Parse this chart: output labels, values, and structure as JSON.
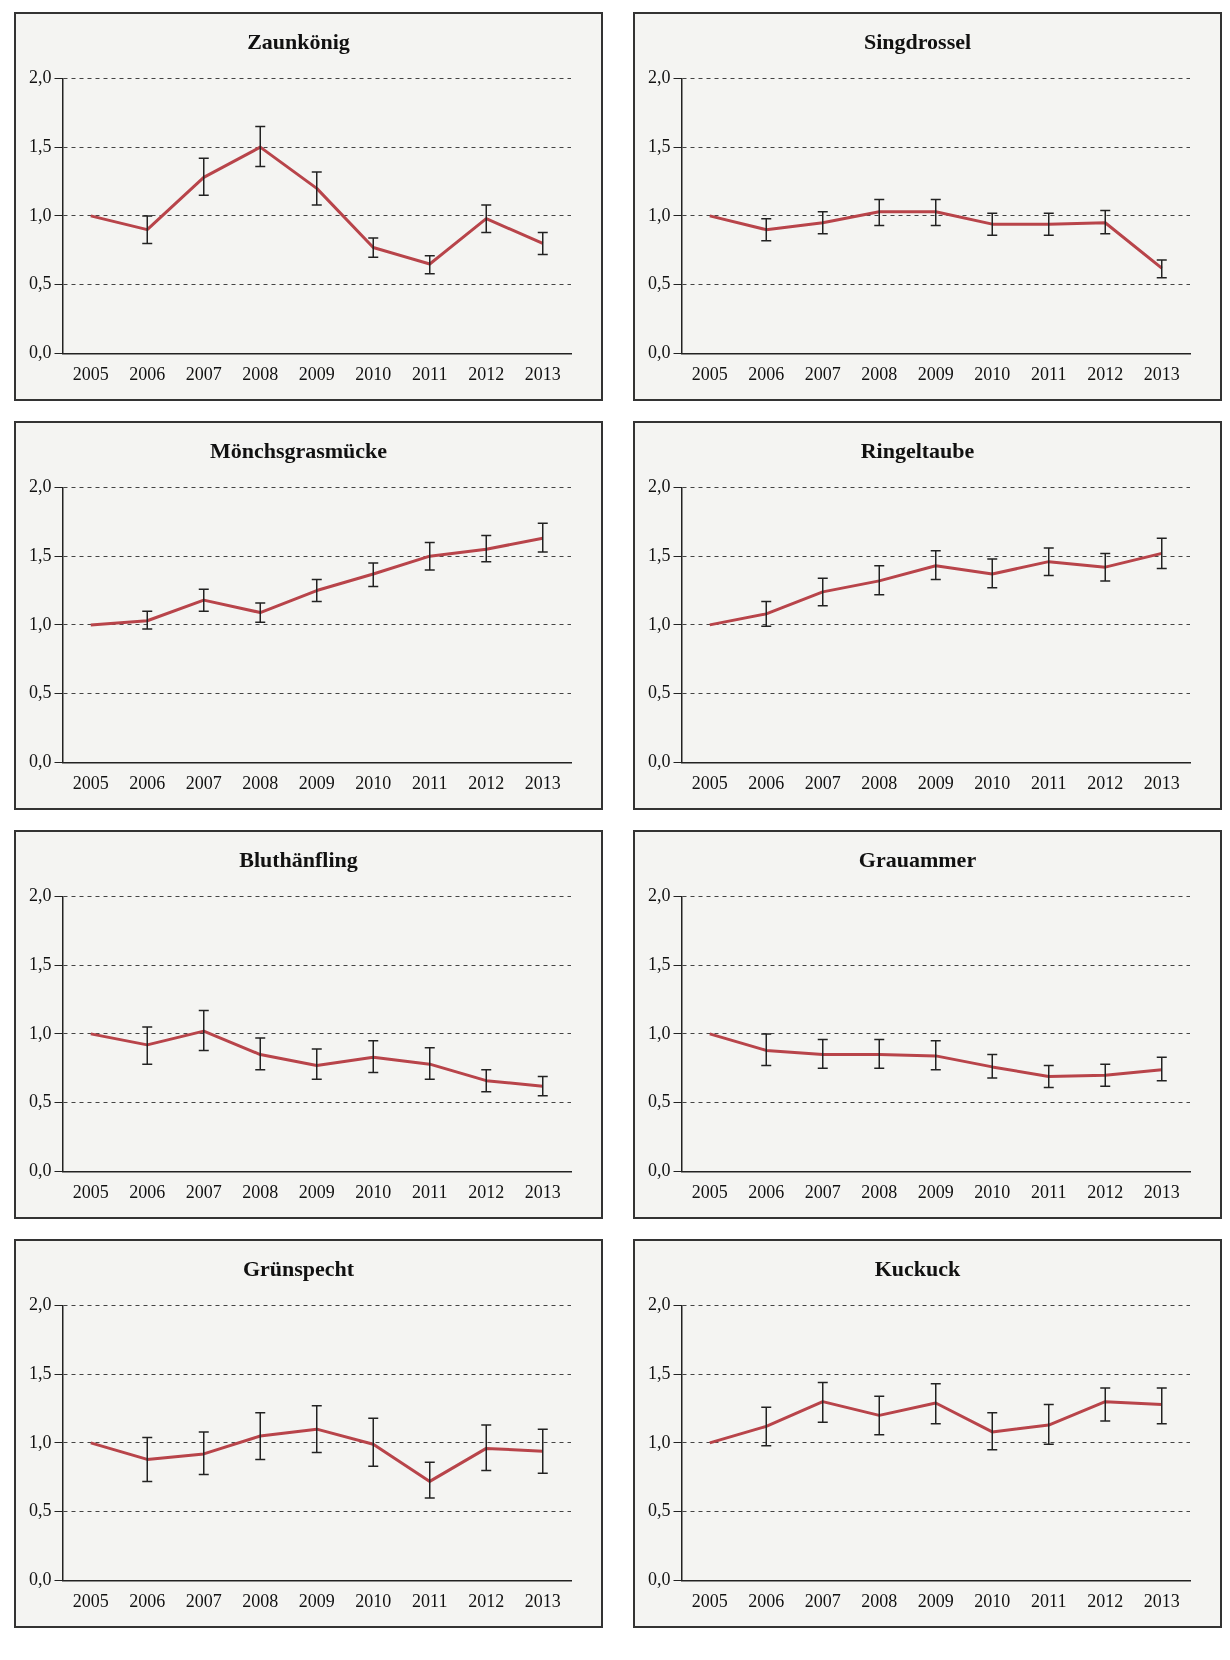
{
  "chart_data": [
    {
      "type": "line",
      "title": "Zaunkönig",
      "categories": [
        "2005",
        "2006",
        "2007",
        "2008",
        "2009",
        "2010",
        "2011",
        "2012",
        "2013"
      ],
      "color": "#b8444a",
      "values": [
        1.0,
        0.9,
        1.28,
        1.5,
        1.2,
        0.77,
        0.65,
        0.98,
        0.8
      ],
      "errors": [
        null,
        [
          0.8,
          1.0
        ],
        [
          1.15,
          1.42
        ],
        [
          1.36,
          1.65
        ],
        [
          1.08,
          1.32
        ],
        [
          0.7,
          0.84
        ],
        [
          0.58,
          0.71
        ],
        [
          0.88,
          1.08
        ],
        [
          0.72,
          0.88
        ]
      ],
      "ylim": [
        0,
        2
      ],
      "yticks": [
        {
          "value": 0,
          "label": "0,0"
        },
        {
          "value": 0.5,
          "label": "0,5"
        },
        {
          "value": 1,
          "label": "1,0"
        },
        {
          "value": 1.5,
          "label": "1,5"
        },
        {
          "value": 2,
          "label": "2,0"
        }
      ],
      "grid": "y",
      "marker": "none"
    },
    {
      "type": "line",
      "title": "Singdrossel",
      "categories": [
        "2005",
        "2006",
        "2007",
        "2008",
        "2009",
        "2010",
        "2011",
        "2012",
        "2013"
      ],
      "color": "#b8444a",
      "values": [
        1.0,
        0.9,
        0.95,
        1.03,
        1.03,
        0.94,
        0.94,
        0.95,
        0.62
      ],
      "errors": [
        null,
        [
          0.82,
          0.98
        ],
        [
          0.87,
          1.03
        ],
        [
          0.93,
          1.12
        ],
        [
          0.93,
          1.12
        ],
        [
          0.86,
          1.02
        ],
        [
          0.86,
          1.02
        ],
        [
          0.87,
          1.04
        ],
        [
          0.55,
          0.68
        ]
      ],
      "ylim": [
        0,
        2
      ],
      "yticks": [
        {
          "value": 0,
          "label": "0,0"
        },
        {
          "value": 0.5,
          "label": "0,5"
        },
        {
          "value": 1,
          "label": "1,0"
        },
        {
          "value": 1.5,
          "label": "1,5"
        },
        {
          "value": 2,
          "label": "2,0"
        }
      ],
      "grid": "y",
      "marker": "none"
    },
    {
      "type": "line",
      "title": "Mönchsgrasmücke",
      "categories": [
        "2005",
        "2006",
        "2007",
        "2008",
        "2009",
        "2010",
        "2011",
        "2012",
        "2013"
      ],
      "color": "#b8444a",
      "values": [
        1.0,
        1.03,
        1.18,
        1.09,
        1.25,
        1.37,
        1.5,
        1.55,
        1.63
      ],
      "errors": [
        null,
        [
          0.97,
          1.1
        ],
        [
          1.1,
          1.26
        ],
        [
          1.02,
          1.16
        ],
        [
          1.17,
          1.33
        ],
        [
          1.28,
          1.45
        ],
        [
          1.4,
          1.6
        ],
        [
          1.46,
          1.65
        ],
        [
          1.53,
          1.74
        ]
      ],
      "ylim": [
        0,
        2
      ],
      "yticks": [
        {
          "value": 0,
          "label": "0,0"
        },
        {
          "value": 0.5,
          "label": "0,5"
        },
        {
          "value": 1,
          "label": "1,0"
        },
        {
          "value": 1.5,
          "label": "1,5"
        },
        {
          "value": 2,
          "label": "2,0"
        }
      ],
      "grid": "y",
      "marker": "none"
    },
    {
      "type": "line",
      "title": "Ringeltaube",
      "categories": [
        "2005",
        "2006",
        "2007",
        "2008",
        "2009",
        "2010",
        "2011",
        "2012",
        "2013"
      ],
      "color": "#b8444a",
      "values": [
        1.0,
        1.08,
        1.24,
        1.32,
        1.43,
        1.37,
        1.46,
        1.42,
        1.52
      ],
      "errors": [
        null,
        [
          0.99,
          1.17
        ],
        [
          1.14,
          1.34
        ],
        [
          1.22,
          1.43
        ],
        [
          1.33,
          1.54
        ],
        [
          1.27,
          1.48
        ],
        [
          1.36,
          1.56
        ],
        [
          1.32,
          1.52
        ],
        [
          1.41,
          1.63
        ]
      ],
      "ylim": [
        0,
        2
      ],
      "yticks": [
        {
          "value": 0,
          "label": "0,0"
        },
        {
          "value": 0.5,
          "label": "0,5"
        },
        {
          "value": 1,
          "label": "1,0"
        },
        {
          "value": 1.5,
          "label": "1,5"
        },
        {
          "value": 2,
          "label": "2,0"
        }
      ],
      "grid": "y",
      "marker": "none"
    },
    {
      "type": "line",
      "title": "Bluthänfling",
      "categories": [
        "2005",
        "2006",
        "2007",
        "2008",
        "2009",
        "2010",
        "2011",
        "2012",
        "2013"
      ],
      "color": "#b8444a",
      "values": [
        1.0,
        0.92,
        1.02,
        0.85,
        0.77,
        0.83,
        0.78,
        0.66,
        0.62
      ],
      "errors": [
        null,
        [
          0.78,
          1.05
        ],
        [
          0.88,
          1.17
        ],
        [
          0.74,
          0.97
        ],
        [
          0.67,
          0.89
        ],
        [
          0.72,
          0.95
        ],
        [
          0.67,
          0.9
        ],
        [
          0.58,
          0.74
        ],
        [
          0.55,
          0.69
        ]
      ],
      "ylim": [
        0,
        2
      ],
      "yticks": [
        {
          "value": 0,
          "label": "0,0"
        },
        {
          "value": 0.5,
          "label": "0,5"
        },
        {
          "value": 1,
          "label": "1,0"
        },
        {
          "value": 1.5,
          "label": "1,5"
        },
        {
          "value": 2,
          "label": "2,0"
        }
      ],
      "grid": "y",
      "marker": "none"
    },
    {
      "type": "line",
      "title": "Grauammer",
      "categories": [
        "2005",
        "2006",
        "2007",
        "2008",
        "2009",
        "2010",
        "2011",
        "2012",
        "2013"
      ],
      "color": "#b8444a",
      "values": [
        1.0,
        0.88,
        0.85,
        0.85,
        0.84,
        0.76,
        0.69,
        0.7,
        0.74
      ],
      "errors": [
        null,
        [
          0.77,
          1.0
        ],
        [
          0.75,
          0.96
        ],
        [
          0.75,
          0.96
        ],
        [
          0.74,
          0.95
        ],
        [
          0.68,
          0.85
        ],
        [
          0.61,
          0.77
        ],
        [
          0.62,
          0.78
        ],
        [
          0.66,
          0.83
        ]
      ],
      "ylim": [
        0,
        2
      ],
      "yticks": [
        {
          "value": 0,
          "label": "0,0"
        },
        {
          "value": 0.5,
          "label": "0,5"
        },
        {
          "value": 1,
          "label": "1,0"
        },
        {
          "value": 1.5,
          "label": "1,5"
        },
        {
          "value": 2,
          "label": "2,0"
        }
      ],
      "grid": "y",
      "marker": "none"
    },
    {
      "type": "line",
      "title": "Grünspecht",
      "categories": [
        "2005",
        "2006",
        "2007",
        "2008",
        "2009",
        "2010",
        "2011",
        "2012",
        "2013"
      ],
      "color": "#b8444a",
      "values": [
        1.0,
        0.88,
        0.92,
        1.05,
        1.1,
        0.99,
        0.72,
        0.96,
        0.94
      ],
      "errors": [
        null,
        [
          0.72,
          1.04
        ],
        [
          0.77,
          1.08
        ],
        [
          0.88,
          1.22
        ],
        [
          0.93,
          1.27
        ],
        [
          0.83,
          1.18
        ],
        [
          0.6,
          0.86
        ],
        [
          0.8,
          1.13
        ],
        [
          0.78,
          1.1
        ]
      ],
      "ylim": [
        0,
        2
      ],
      "yticks": [
        {
          "value": 0,
          "label": "0,0"
        },
        {
          "value": 0.5,
          "label": "0,5"
        },
        {
          "value": 1,
          "label": "1,0"
        },
        {
          "value": 1.5,
          "label": "1,5"
        },
        {
          "value": 2,
          "label": "2,0"
        }
      ],
      "grid": "y",
      "marker": "none"
    },
    {
      "type": "line",
      "title": "Kuckuck",
      "categories": [
        "2005",
        "2006",
        "2007",
        "2008",
        "2009",
        "2010",
        "2011",
        "2012",
        "2013"
      ],
      "color": "#b8444a",
      "values": [
        1.0,
        1.12,
        1.3,
        1.2,
        1.29,
        1.08,
        1.13,
        1.3,
        1.28
      ],
      "errors": [
        null,
        [
          0.98,
          1.26
        ],
        [
          1.15,
          1.44
        ],
        [
          1.06,
          1.34
        ],
        [
          1.14,
          1.43
        ],
        [
          0.95,
          1.22
        ],
        [
          0.99,
          1.28
        ],
        [
          1.16,
          1.4
        ],
        [
          1.14,
          1.4
        ]
      ],
      "ylim": [
        0,
        2
      ],
      "yticks": [
        {
          "value": 0,
          "label": "0,0"
        },
        {
          "value": 0.5,
          "label": "0,5"
        },
        {
          "value": 1,
          "label": "1,0"
        },
        {
          "value": 1.5,
          "label": "1,5"
        },
        {
          "value": 2,
          "label": "2,0"
        }
      ],
      "grid": "y",
      "marker": "none"
    }
  ]
}
